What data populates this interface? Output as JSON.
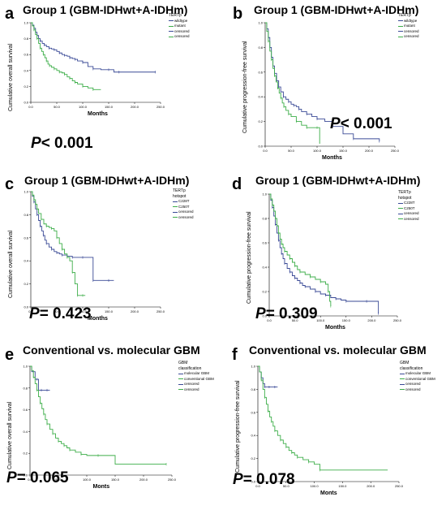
{
  "colors": {
    "blue": "#3a4a96",
    "green": "#3dae49"
  },
  "chart_data": [
    {
      "type": "line",
      "panel": "a",
      "title": "Group 1 (GBM-IDHwt+A-IDHm)",
      "xlabel": "Months",
      "ylabel": "Cumulative overall survival",
      "p_prefix": "P",
      "p_text": "< 0.001",
      "xlim": [
        0,
        250
      ],
      "ylim": [
        0,
        1
      ],
      "xticks": [
        "0.0",
        "50.0",
        "100.0",
        "150.0",
        "200.0",
        "250.0"
      ],
      "yticks": [
        "0.0",
        "0.2",
        "0.4",
        "0.6",
        "0.8",
        "1.0"
      ],
      "legend_title": "TERTp",
      "legend_items": [
        "wildtype",
        "mutant",
        "censored",
        "censored"
      ],
      "series": [
        {
          "name": "wildtype",
          "color": "blue",
          "x": [
            0,
            3,
            6,
            9,
            12,
            15,
            18,
            22,
            26,
            30,
            35,
            40,
            45,
            50,
            55,
            60,
            65,
            70,
            75,
            80,
            85,
            90,
            100,
            110,
            120,
            135,
            150,
            160,
            170,
            200,
            240
          ],
          "y": [
            1.0,
            0.97,
            0.93,
            0.88,
            0.84,
            0.8,
            0.77,
            0.74,
            0.72,
            0.7,
            0.68,
            0.67,
            0.66,
            0.64,
            0.62,
            0.6,
            0.59,
            0.58,
            0.56,
            0.55,
            0.54,
            0.52,
            0.5,
            0.45,
            0.42,
            0.41,
            0.41,
            0.38,
            0.38,
            0.38,
            0.38
          ]
        },
        {
          "name": "mutant",
          "color": "green",
          "x": [
            0,
            3,
            6,
            9,
            12,
            15,
            18,
            21,
            24,
            27,
            30,
            33,
            36,
            40,
            45,
            50,
            55,
            60,
            65,
            70,
            75,
            80,
            85,
            90,
            100,
            110,
            120,
            135
          ],
          "y": [
            1.0,
            0.96,
            0.91,
            0.85,
            0.8,
            0.74,
            0.68,
            0.64,
            0.6,
            0.56,
            0.52,
            0.48,
            0.46,
            0.44,
            0.42,
            0.4,
            0.38,
            0.37,
            0.35,
            0.32,
            0.3,
            0.27,
            0.25,
            0.23,
            0.2,
            0.18,
            0.16,
            0.16
          ]
        }
      ]
    },
    {
      "type": "line",
      "panel": "b",
      "title": "Group 1 (GBM-IDHwt+A-IDHm)",
      "xlabel": "Months",
      "ylabel": "Cumulative progression-free survival",
      "p_prefix": "P",
      "p_text": "< 0.001",
      "xlim": [
        0,
        250
      ],
      "ylim": [
        0,
        1
      ],
      "xticks": [
        "0.0",
        "50.0",
        "100.0",
        "150.0",
        "200.0",
        "250.0"
      ],
      "yticks": [
        "0.0",
        "0.2",
        "0.4",
        "0.6",
        "0.8",
        "1.0"
      ],
      "legend_title": "TERTp",
      "legend_items": [
        "wildtype",
        "mutant",
        "censored",
        "censored"
      ],
      "series": [
        {
          "name": "wildtype",
          "color": "blue",
          "x": [
            0,
            3,
            6,
            9,
            12,
            15,
            18,
            22,
            26,
            30,
            35,
            40,
            45,
            50,
            55,
            60,
            65,
            70,
            80,
            90,
            100,
            115,
            130,
            150,
            170,
            200,
            220
          ],
          "y": [
            1.0,
            0.95,
            0.88,
            0.8,
            0.72,
            0.65,
            0.59,
            0.53,
            0.48,
            0.44,
            0.4,
            0.38,
            0.36,
            0.34,
            0.33,
            0.32,
            0.3,
            0.28,
            0.26,
            0.24,
            0.22,
            0.2,
            0.16,
            0.1,
            0.06,
            0.06,
            0.04
          ]
        },
        {
          "name": "mutant",
          "color": "green",
          "x": [
            0,
            3,
            6,
            9,
            12,
            15,
            18,
            21,
            24,
            27,
            30,
            33,
            36,
            40,
            45,
            50,
            60,
            70,
            80,
            90,
            100,
            105
          ],
          "y": [
            1.0,
            0.93,
            0.85,
            0.77,
            0.7,
            0.63,
            0.57,
            0.52,
            0.47,
            0.43,
            0.39,
            0.35,
            0.32,
            0.29,
            0.26,
            0.24,
            0.2,
            0.17,
            0.15,
            0.15,
            0.15,
            0.02
          ]
        }
      ]
    },
    {
      "type": "line",
      "panel": "c",
      "title": "Group 1 (GBM-IDHwt+A-IDHm)",
      "xlabel": "Months",
      "ylabel": "Cumulative overall survival",
      "p_prefix": "P",
      "p_text": "= 0.423",
      "xlim": [
        0,
        250
      ],
      "ylim": [
        0,
        1
      ],
      "xticks": [
        "0.0",
        "50.0",
        "100.0",
        "150.0",
        "200.0",
        "250.0"
      ],
      "yticks": [
        "0.0",
        "0.2",
        "0.4",
        "0.6",
        "0.8",
        "1.0"
      ],
      "legend_title": "TERTp hotspot",
      "legend_items": [
        "C228T",
        "C250T",
        "censored",
        "censored"
      ],
      "series": [
        {
          "name": "C228T",
          "color": "blue",
          "x": [
            0,
            3,
            6,
            9,
            12,
            15,
            18,
            21,
            24,
            27,
            30,
            35,
            40,
            45,
            50,
            55,
            60,
            70,
            80,
            90,
            100,
            110,
            120,
            135,
            150,
            160
          ],
          "y": [
            1.0,
            0.96,
            0.91,
            0.85,
            0.8,
            0.75,
            0.7,
            0.66,
            0.62,
            0.58,
            0.55,
            0.52,
            0.5,
            0.48,
            0.47,
            0.46,
            0.45,
            0.44,
            0.43,
            0.43,
            0.43,
            0.43,
            0.23,
            0.23,
            0.23,
            0.23
          ]
        },
        {
          "name": "C250T",
          "color": "green",
          "x": [
            0,
            3,
            6,
            9,
            12,
            15,
            20,
            25,
            30,
            35,
            40,
            45,
            50,
            55,
            60,
            65,
            70,
            75,
            80,
            85,
            90,
            95,
            100,
            105
          ],
          "y": [
            1.0,
            0.97,
            0.93,
            0.89,
            0.85,
            0.81,
            0.76,
            0.72,
            0.7,
            0.69,
            0.68,
            0.66,
            0.6,
            0.55,
            0.5,
            0.46,
            0.43,
            0.4,
            0.3,
            0.2,
            0.1,
            0.1,
            0.1,
            0.1
          ]
        }
      ]
    },
    {
      "type": "line",
      "panel": "d",
      "title": "Group 1 (GBM-IDHwt+A-IDHm)",
      "xlabel": "Months",
      "ylabel": "Cumulative progression-free survival",
      "p_prefix": "P",
      "p_text": "= 0.309",
      "xlim": [
        0,
        250
      ],
      "ylim": [
        0,
        1
      ],
      "xticks": [
        "0.0",
        "50.0",
        "100.0",
        "150.0",
        "200.0",
        "250.0"
      ],
      "yticks": [
        "0.0",
        "0.2",
        "0.4",
        "0.6",
        "0.8",
        "1.0"
      ],
      "legend_title": "TERTp hotspot",
      "legend_items": [
        "C228T",
        "C250T",
        "censored",
        "censored"
      ],
      "series": [
        {
          "name": "C228T",
          "color": "blue",
          "x": [
            0,
            3,
            6,
            9,
            12,
            15,
            18,
            21,
            24,
            27,
            30,
            35,
            40,
            45,
            50,
            55,
            60,
            65,
            70,
            80,
            90,
            100,
            110,
            120,
            130,
            140,
            150,
            165,
            190,
            210,
            213
          ],
          "y": [
            1.0,
            0.95,
            0.89,
            0.82,
            0.75,
            0.68,
            0.62,
            0.56,
            0.51,
            0.47,
            0.43,
            0.39,
            0.36,
            0.33,
            0.31,
            0.29,
            0.27,
            0.25,
            0.24,
            0.22,
            0.2,
            0.18,
            0.17,
            0.15,
            0.14,
            0.13,
            0.12,
            0.12,
            0.12,
            0.12,
            0.02
          ]
        },
        {
          "name": "C250T",
          "color": "green",
          "x": [
            0,
            3,
            6,
            9,
            12,
            15,
            18,
            21,
            24,
            27,
            30,
            35,
            40,
            45,
            50,
            55,
            60,
            70,
            80,
            90,
            100,
            110,
            115,
            118,
            120
          ],
          "y": [
            1.0,
            0.96,
            0.91,
            0.86,
            0.8,
            0.74,
            0.68,
            0.63,
            0.59,
            0.56,
            0.53,
            0.5,
            0.47,
            0.44,
            0.41,
            0.38,
            0.36,
            0.34,
            0.32,
            0.3,
            0.28,
            0.26,
            0.2,
            0.12,
            0.08
          ]
        }
      ]
    },
    {
      "type": "line",
      "panel": "e",
      "title": "Conventional vs. molecular GBM",
      "xlabel": "Monts",
      "ylabel": "Cumulative overall survival",
      "p_prefix": "P",
      "p_text": "= 0.065",
      "xlim": [
        0,
        250
      ],
      "ylim": [
        0,
        1
      ],
      "xticks": [
        "0.0",
        "50.0",
        "100.0",
        "150.0",
        "200.0",
        "250.0"
      ],
      "yticks": [
        "0.0",
        "0.2",
        "0.4",
        "0.6",
        "0.8",
        "1.0"
      ],
      "legend_title": "GBM classification",
      "legend_items": [
        "molecular GBM",
        "conventional GBM",
        "censored",
        "censored"
      ],
      "series": [
        {
          "name": "molecular GBM",
          "color": "blue",
          "x": [
            0,
            3,
            6,
            9,
            12,
            15,
            20,
            25,
            30,
            35
          ],
          "y": [
            1.0,
            0.95,
            0.95,
            0.88,
            0.88,
            0.78,
            0.78,
            0.78,
            0.78,
            0.78
          ]
        },
        {
          "name": "conventional GBM",
          "color": "green",
          "x": [
            0,
            3,
            6,
            9,
            12,
            15,
            18,
            21,
            24,
            27,
            30,
            35,
            40,
            45,
            50,
            55,
            60,
            65,
            70,
            80,
            90,
            100,
            120,
            150,
            240
          ],
          "y": [
            1.0,
            0.96,
            0.9,
            0.84,
            0.78,
            0.72,
            0.66,
            0.61,
            0.56,
            0.51,
            0.47,
            0.42,
            0.38,
            0.34,
            0.31,
            0.29,
            0.27,
            0.25,
            0.23,
            0.21,
            0.19,
            0.18,
            0.18,
            0.1,
            0.1
          ]
        }
      ]
    },
    {
      "type": "line",
      "panel": "f",
      "title": "Conventional vs. molecular GBM",
      "xlabel": "Monts",
      "ylabel": "Cumulative progression-free survival",
      "p_prefix": "P",
      "p_text": "= 0.078",
      "xlim": [
        0,
        250
      ],
      "ylim": [
        0,
        1
      ],
      "xticks": [
        "0.0",
        "50.0",
        "100.0",
        "150.0",
        "200.0",
        "250.0"
      ],
      "yticks": [
        "0.0",
        "0.2",
        "0.4",
        "0.6",
        "0.8",
        "1.0"
      ],
      "legend_title": "GBM classification",
      "legend_items": [
        "molecular GBM",
        "conventional GBM",
        "censored",
        "censored"
      ],
      "series": [
        {
          "name": "molecular GBM",
          "color": "blue",
          "x": [
            0,
            3,
            6,
            9,
            12,
            15,
            20,
            25,
            30,
            35
          ],
          "y": [
            1.0,
            0.95,
            0.9,
            0.85,
            0.82,
            0.82,
            0.82,
            0.82,
            0.82,
            0.82
          ]
        },
        {
          "name": "conventional GBM",
          "color": "green",
          "x": [
            0,
            3,
            6,
            9,
            12,
            15,
            18,
            21,
            24,
            27,
            30,
            35,
            40,
            45,
            50,
            55,
            60,
            65,
            70,
            80,
            90,
            100,
            110,
            230
          ],
          "y": [
            1.0,
            0.95,
            0.88,
            0.8,
            0.73,
            0.67,
            0.61,
            0.56,
            0.52,
            0.48,
            0.44,
            0.4,
            0.36,
            0.33,
            0.3,
            0.27,
            0.25,
            0.23,
            0.21,
            0.19,
            0.17,
            0.15,
            0.1,
            0.1
          ]
        }
      ]
    }
  ]
}
